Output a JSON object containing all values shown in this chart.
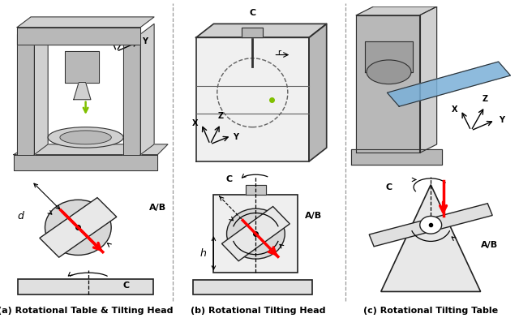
{
  "figure_width": 6.4,
  "figure_height": 4.08,
  "dpi": 100,
  "bg_color": "#ffffff",
  "captions": [
    "(a) Rotational Table & Tilting Head",
    "(b) Rotational Tilting Head",
    "(c) Rotational Tilting Table"
  ],
  "caption_fontsize": 8.0,
  "caption_fontweight": "bold",
  "divider_color": "#888888"
}
